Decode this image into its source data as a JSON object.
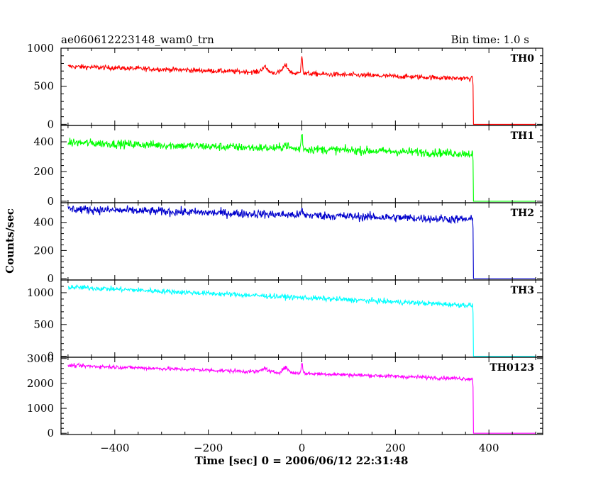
{
  "header": {
    "title": "ae060612223148_wam0_trn",
    "bin_time": "Bin time: 1.0 s"
  },
  "chart_data": {
    "type": "line",
    "xlabel": "Time [sec] 0 = 2006/06/12 22:31:48",
    "ylabel": "Counts/sec",
    "xlim": [
      -515,
      515
    ],
    "x_ticks": [
      -400,
      -200,
      0,
      200,
      400
    ],
    "x_tick_labels": [
      "−400",
      "−200",
      "0",
      "200",
      "400"
    ],
    "drop_time": 366,
    "panels": [
      {
        "name": "TH0",
        "color": "#ff0000",
        "ylim": [
          -15,
          1000
        ],
        "y_ticks": [
          0,
          500,
          1000
        ],
        "y_tick_labels": [
          "0",
          "500",
          "1000"
        ],
        "level_start": 760,
        "level_end": 600,
        "noise": 32,
        "final": 0,
        "peaks": [
          {
            "t": 0,
            "h": 250
          },
          {
            "t": -80,
            "h": 70
          },
          {
            "t": -35,
            "h": 95
          }
        ]
      },
      {
        "name": "TH1",
        "color": "#00ff00",
        "ylim": [
          -10,
          510
        ],
        "y_ticks": [
          0,
          200,
          400
        ],
        "y_tick_labels": [
          "0",
          "200",
          "400"
        ],
        "level_start": 395,
        "level_end": 320,
        "noise": 28,
        "final": 0,
        "peaks": [
          {
            "t": 0,
            "h": 110
          },
          {
            "t": -35,
            "h": 25
          }
        ]
      },
      {
        "name": "TH2",
        "color": "#0000cc",
        "ylim": [
          -10,
          540
        ],
        "y_ticks": [
          0,
          200,
          400
        ],
        "y_tick_labels": [
          "0",
          "200",
          "400"
        ],
        "level_start": 495,
        "level_end": 420,
        "noise": 30,
        "final": 0,
        "peaks": [
          {
            "t": 0,
            "h": 40
          }
        ]
      },
      {
        "name": "TH3",
        "color": "#00ffff",
        "ylim": [
          -15,
          1200
        ],
        "y_ticks": [
          0,
          500,
          1000
        ],
        "y_tick_labels": [
          "0",
          "500",
          "1000"
        ],
        "level_start": 1090,
        "level_end": 800,
        "noise": 40,
        "final": 0,
        "peaks": []
      },
      {
        "name": "TH0123",
        "color": "#ff00ff",
        "ylim": [
          -50,
          3050
        ],
        "y_ticks": [
          0,
          1000,
          2000,
          3000
        ],
        "y_tick_labels": [
          "0",
          "1000",
          "2000",
          "3000"
        ],
        "level_start": 2720,
        "level_end": 2180,
        "noise": 75,
        "final": 0,
        "peaks": [
          {
            "t": 0,
            "h": 450
          },
          {
            "t": -80,
            "h": 150
          },
          {
            "t": -35,
            "h": 200
          }
        ]
      }
    ]
  }
}
